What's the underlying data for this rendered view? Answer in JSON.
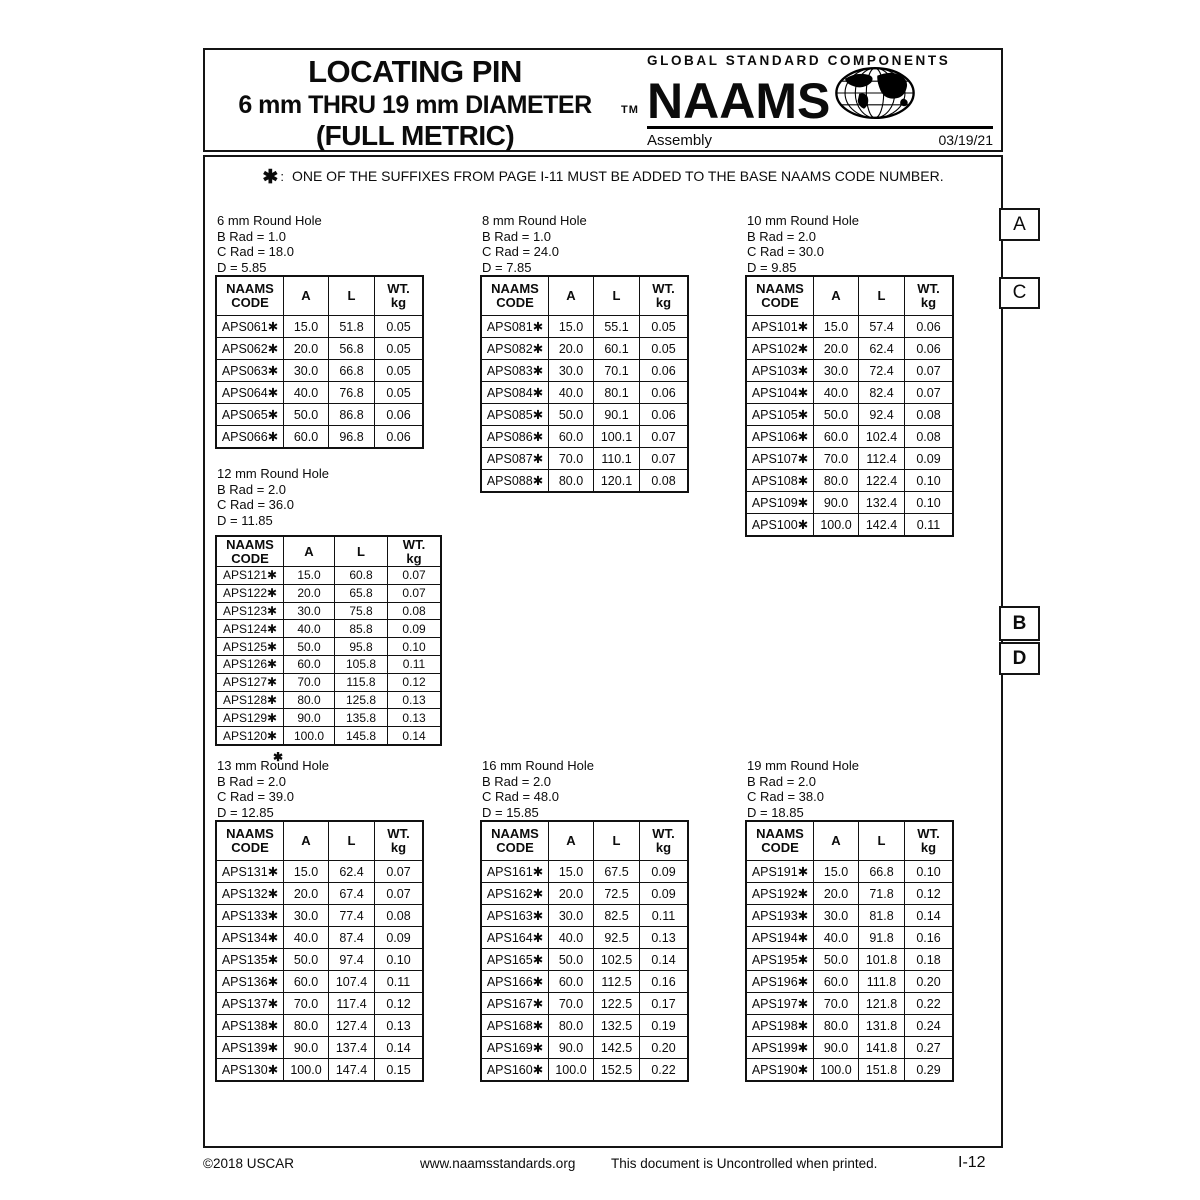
{
  "header": {
    "title_line1": "LOCATING PIN",
    "title_line2": "6 mm THRU 19 mm DIAMETER",
    "title_line3": "(FULL METRIC)",
    "brand": {
      "tagline": "GLOBAL STANDARD COMPONENTS",
      "tm": "TM",
      "name": "NAAMS",
      "globe_icon": "globe-icon",
      "division": "Assembly",
      "date": "03/19/21"
    }
  },
  "note": {
    "star": "✱",
    "colon": ":",
    "text": "ONE OF THE SUFFIXES FROM PAGE I-11 MUST BE ADDED TO THE BASE NAAMS CODE NUMBER."
  },
  "columns": [
    [
      "NAAMS",
      "CODE"
    ],
    [
      "A"
    ],
    [
      "L"
    ],
    [
      "WT.",
      "kg"
    ]
  ],
  "sections": [
    {
      "id": "6mm",
      "label": "6 mm Round Hole",
      "specs": [
        "B Rad = 1.0",
        "C Rad = 18.0",
        "D = 5.85"
      ],
      "rows": [
        [
          "APS061✱",
          "15.0",
          "51.8",
          "0.05"
        ],
        [
          "APS062✱",
          "20.0",
          "56.8",
          "0.05"
        ],
        [
          "APS063✱",
          "30.0",
          "66.8",
          "0.05"
        ],
        [
          "APS064✱",
          "40.0",
          "76.8",
          "0.05"
        ],
        [
          "APS065✱",
          "50.0",
          "86.8",
          "0.06"
        ],
        [
          "APS066✱",
          "60.0",
          "96.8",
          "0.06"
        ]
      ]
    },
    {
      "id": "8mm",
      "label": "8 mm Round Hole",
      "specs": [
        "B Rad = 1.0",
        "C Rad = 24.0",
        "D = 7.85"
      ],
      "rows": [
        [
          "APS081✱",
          "15.0",
          "55.1",
          "0.05"
        ],
        [
          "APS082✱",
          "20.0",
          "60.1",
          "0.05"
        ],
        [
          "APS083✱",
          "30.0",
          "70.1",
          "0.06"
        ],
        [
          "APS084✱",
          "40.0",
          "80.1",
          "0.06"
        ],
        [
          "APS085✱",
          "50.0",
          "90.1",
          "0.06"
        ],
        [
          "APS086✱",
          "60.0",
          "100.1",
          "0.07"
        ],
        [
          "APS087✱",
          "70.0",
          "110.1",
          "0.07"
        ],
        [
          "APS088✱",
          "80.0",
          "120.1",
          "0.08"
        ]
      ]
    },
    {
      "id": "10mm",
      "label": "10 mm Round Hole",
      "specs": [
        "B Rad = 2.0",
        "C Rad = 30.0",
        "D = 9.85"
      ],
      "rows": [
        [
          "APS101✱",
          "15.0",
          "57.4",
          "0.06"
        ],
        [
          "APS102✱",
          "20.0",
          "62.4",
          "0.06"
        ],
        [
          "APS103✱",
          "30.0",
          "72.4",
          "0.07"
        ],
        [
          "APS104✱",
          "40.0",
          "82.4",
          "0.07"
        ],
        [
          "APS105✱",
          "50.0",
          "92.4",
          "0.08"
        ],
        [
          "APS106✱",
          "60.0",
          "102.4",
          "0.08"
        ],
        [
          "APS107✱",
          "70.0",
          "112.4",
          "0.09"
        ],
        [
          "APS108✱",
          "80.0",
          "122.4",
          "0.10"
        ],
        [
          "APS109✱",
          "90.0",
          "132.4",
          "0.10"
        ],
        [
          "APS100✱",
          "100.0",
          "142.4",
          "0.11"
        ]
      ]
    },
    {
      "id": "12mm",
      "label": "12 mm Round Hole",
      "specs": [
        "B Rad = 2.0",
        "C Rad = 36.0",
        "D = 11.85"
      ],
      "rows": [
        [
          "APS121✱",
          "15.0",
          "60.8",
          "0.07"
        ],
        [
          "APS122✱",
          "20.0",
          "65.8",
          "0.07"
        ],
        [
          "APS123✱",
          "30.0",
          "75.8",
          "0.08"
        ],
        [
          "APS124✱",
          "40.0",
          "85.8",
          "0.09"
        ],
        [
          "APS125✱",
          "50.0",
          "95.8",
          "0.10"
        ],
        [
          "APS126✱",
          "60.0",
          "105.8",
          "0.11"
        ],
        [
          "APS127✱",
          "70.0",
          "115.8",
          "0.12"
        ],
        [
          "APS128✱",
          "80.0",
          "125.8",
          "0.13"
        ],
        [
          "APS129✱",
          "90.0",
          "135.8",
          "0.13"
        ],
        [
          "APS120✱",
          "100.0",
          "145.8",
          "0.14"
        ]
      ]
    },
    {
      "id": "13mm",
      "label": "13 mm Round Hole",
      "mark": "✱",
      "specs": [
        "B Rad = 2.0",
        "C Rad = 39.0",
        "D = 12.85"
      ],
      "rows": [
        [
          "APS131✱",
          "15.0",
          "62.4",
          "0.07"
        ],
        [
          "APS132✱",
          "20.0",
          "67.4",
          "0.07"
        ],
        [
          "APS133✱",
          "30.0",
          "77.4",
          "0.08"
        ],
        [
          "APS134✱",
          "40.0",
          "87.4",
          "0.09"
        ],
        [
          "APS135✱",
          "50.0",
          "97.4",
          "0.10"
        ],
        [
          "APS136✱",
          "60.0",
          "107.4",
          "0.11"
        ],
        [
          "APS137✱",
          "70.0",
          "117.4",
          "0.12"
        ],
        [
          "APS138✱",
          "80.0",
          "127.4",
          "0.13"
        ],
        [
          "APS139✱",
          "90.0",
          "137.4",
          "0.14"
        ],
        [
          "APS130✱",
          "100.0",
          "147.4",
          "0.15"
        ]
      ]
    },
    {
      "id": "16mm",
      "label": "16 mm Round Hole",
      "specs": [
        "B Rad = 2.0",
        "C Rad = 48.0",
        "D = 15.85"
      ],
      "rows": [
        [
          "APS161✱",
          "15.0",
          "67.5",
          "0.09"
        ],
        [
          "APS162✱",
          "20.0",
          "72.5",
          "0.09"
        ],
        [
          "APS163✱",
          "30.0",
          "82.5",
          "0.11"
        ],
        [
          "APS164✱",
          "40.0",
          "92.5",
          "0.13"
        ],
        [
          "APS165✱",
          "50.0",
          "102.5",
          "0.14"
        ],
        [
          "APS166✱",
          "60.0",
          "112.5",
          "0.16"
        ],
        [
          "APS167✱",
          "70.0",
          "122.5",
          "0.17"
        ],
        [
          "APS168✱",
          "80.0",
          "132.5",
          "0.19"
        ],
        [
          "APS169✱",
          "90.0",
          "142.5",
          "0.20"
        ],
        [
          "APS160✱",
          "100.0",
          "152.5",
          "0.22"
        ]
      ]
    },
    {
      "id": "19mm",
      "label": "19 mm Round Hole",
      "specs": [
        "B Rad = 2.0",
        "C Rad = 38.0",
        "D = 18.85"
      ],
      "rows": [
        [
          "APS191✱",
          "15.0",
          "66.8",
          "0.10"
        ],
        [
          "APS192✱",
          "20.0",
          "71.8",
          "0.12"
        ],
        [
          "APS193✱",
          "30.0",
          "81.8",
          "0.14"
        ],
        [
          "APS194✱",
          "40.0",
          "91.8",
          "0.16"
        ],
        [
          "APS195✱",
          "50.0",
          "101.8",
          "0.18"
        ],
        [
          "APS196✱",
          "60.0",
          "111.8",
          "0.20"
        ],
        [
          "APS197✱",
          "70.0",
          "121.8",
          "0.22"
        ],
        [
          "APS198✱",
          "80.0",
          "131.8",
          "0.24"
        ],
        [
          "APS199✱",
          "90.0",
          "141.8",
          "0.27"
        ],
        [
          "APS190✱",
          "100.0",
          "151.8",
          "0.29"
        ]
      ]
    }
  ],
  "margin_tabs": [
    {
      "label": "A"
    },
    {
      "label": "C"
    },
    {
      "label": "B"
    },
    {
      "label": "D"
    }
  ],
  "footer": {
    "copyright": "©2018 USCAR",
    "website": "www.naamsstandards.org",
    "notice": "This document is Uncontrolled when printed.",
    "page_number": "I-12"
  }
}
